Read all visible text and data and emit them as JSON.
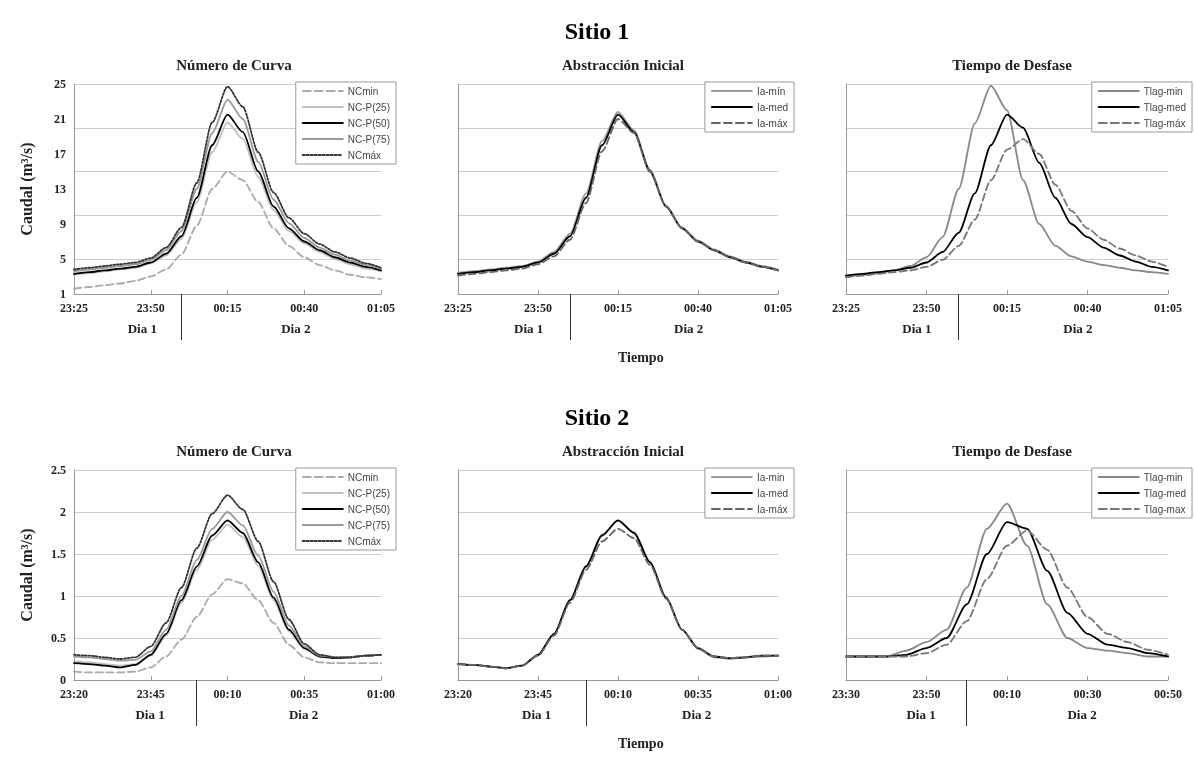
{
  "chart_data": [
    {
      "type": "line",
      "title": "Número de Curva",
      "ylabel": "Caudal (m³/s)",
      "annotations": [
        "Dia 1",
        "Dia 2"
      ],
      "marker": "none",
      "grid": "y",
      "legend": "top right",
      "x": [
        "--01-01T23:25",
        "--01-01T23:30",
        "--01-01T23:35",
        "--01-01T23:40",
        "--01-01T23:45",
        "--01-01T23:50",
        "--01-01T23:55",
        "--01-02T00:00",
        "--01-02T00:05",
        "--01-02T00:10",
        "--01-02T00:15",
        "--01-02T00:20",
        "--01-02T00:25",
        "--01-02T00:30",
        "--01-02T00:35",
        "--01-02T00:40",
        "--01-02T00:45",
        "--01-02T00:50",
        "--01-02T00:55",
        "--01-02T01:00",
        "--01-02T01:05"
      ],
      "xlim": [
        "--01-01T23:25",
        "--01-02T01:05"
      ],
      "xticks": [
        {
          "value": "--01-01T23:25",
          "label": "23:25"
        },
        {
          "value": "--01-01T23:50",
          "label": "23:50"
        },
        {
          "value": "--01-02T00:15",
          "label": "00:15"
        },
        {
          "value": "--01-02T00:40",
          "label": "00:40"
        },
        {
          "value": "--01-02T01:05",
          "label": "01:05"
        }
      ],
      "ylim": [
        1,
        25
      ],
      "yticks": [
        1,
        5,
        9,
        13,
        17,
        21,
        25
      ],
      "series": [
        {
          "name": "NCmin",
          "color": "#aaaaaa",
          "line_style": "dashed",
          "values": [
            1.6,
            1.8,
            2.0,
            2.2,
            2.5,
            3.0,
            3.8,
            5.5,
            8.8,
            13,
            15,
            14,
            11.5,
            8.5,
            6.5,
            5.2,
            4.3,
            3.7,
            3.2,
            2.9,
            2.7
          ]
        },
        {
          "name": "NC-P(25)",
          "color": "#c0c0c0",
          "line_style": "solid",
          "values": [
            3.2,
            3.4,
            3.6,
            3.8,
            4.0,
            4.5,
            5.4,
            7.3,
            11.5,
            17.2,
            20.6,
            18.7,
            14.4,
            10.6,
            8.2,
            6.8,
            5.8,
            5.0,
            4.4,
            3.9,
            3.6
          ]
        },
        {
          "name": "NC-P(50)",
          "color": "#000000",
          "line_style": "solid",
          "values": [
            3.3,
            3.5,
            3.7,
            3.9,
            4.1,
            4.6,
            5.6,
            7.6,
            12,
            18,
            21.5,
            19.5,
            15,
            11,
            8.5,
            7,
            6,
            5.2,
            4.6,
            4.1,
            3.7
          ]
        },
        {
          "name": "NC-P(75)",
          "color": "#999999",
          "line_style": "solid",
          "values": [
            3.6,
            3.8,
            4.0,
            4.2,
            4.4,
            4.9,
            6,
            8.2,
            13,
            19.4,
            23.2,
            21,
            16.1,
            11.8,
            9.1,
            7.4,
            6.3,
            5.5,
            4.8,
            4.3,
            3.9
          ]
        },
        {
          "name": "NCmáx",
          "color": "#333333",
          "line_style": "dotted",
          "values": [
            3.8,
            4.0,
            4.2,
            4.4,
            4.6,
            5.1,
            6.3,
            8.6,
            13.7,
            20.6,
            24.7,
            22.4,
            17.2,
            12.6,
            9.7,
            7.9,
            6.7,
            5.8,
            5.1,
            4.5,
            4.0
          ]
        }
      ]
    },
    {
      "type": "line",
      "title": "Sitio 1",
      "subtitle": "Abstracción Inicial",
      "xlabel": "Tiempo",
      "annotations": [
        "Dia 1",
        "Dia 2"
      ],
      "marker": "none",
      "grid": "y",
      "legend": "top right",
      "tick_labels": "x",
      "x": [
        "--01-01T23:25",
        "--01-01T23:30",
        "--01-01T23:35",
        "--01-01T23:40",
        "--01-01T23:45",
        "--01-01T23:50",
        "--01-01T23:55",
        "--01-02T00:00",
        "--01-02T00:05",
        "--01-02T00:10",
        "--01-02T00:15",
        "--01-02T00:20",
        "--01-02T00:25",
        "--01-02T00:30",
        "--01-02T00:35",
        "--01-02T00:40",
        "--01-02T00:45",
        "--01-02T00:50",
        "--01-02T00:55",
        "--01-02T01:00",
        "--01-02T01:05"
      ],
      "xlim": [
        "--01-01T23:25",
        "--01-02T01:05"
      ],
      "xticks": [
        {
          "value": "--01-01T23:25",
          "label": "23:25"
        },
        {
          "value": "--01-01T23:50",
          "label": "23:50"
        },
        {
          "value": "--01-02T00:15",
          "label": "00:15"
        },
        {
          "value": "--01-02T00:40",
          "label": "00:40"
        },
        {
          "value": "--01-02T01:05",
          "label": "01:05"
        }
      ],
      "ylim": [
        1,
        25
      ],
      "yticks": [
        1,
        5,
        9,
        13,
        17,
        21,
        25
      ],
      "series": [
        {
          "name": "Ia-mín",
          "color": "#999999",
          "line_style": "solid",
          "values": [
            3.4,
            3.6,
            3.8,
            4.0,
            4.2,
            4.7,
            5.8,
            7.9,
            12.5,
            18.5,
            21.8,
            19.7,
            15.2,
            11.1,
            8.6,
            7.1,
            6.1,
            5.3,
            4.7,
            4.2,
            3.8
          ]
        },
        {
          "name": "Ia-med",
          "color": "#000000",
          "line_style": "solid",
          "values": [
            3.3,
            3.5,
            3.7,
            3.9,
            4.1,
            4.6,
            5.6,
            7.6,
            12,
            18,
            21.5,
            19.5,
            15,
            11,
            8.5,
            7,
            6,
            5.2,
            4.6,
            4.1,
            3.7
          ]
        },
        {
          "name": "Ia-máx",
          "color": "#666666",
          "line_style": "dashed",
          "values": [
            3.1,
            3.3,
            3.5,
            3.7,
            3.9,
            4.4,
            5.3,
            7.2,
            11.4,
            17.3,
            21,
            19.4,
            15,
            11,
            8.5,
            7,
            6,
            5.2,
            4.6,
            4.1,
            3.7
          ]
        }
      ]
    },
    {
      "type": "line",
      "title": "Tiempo de Desfase",
      "annotations": [
        "Dia 1",
        "Dia 2"
      ],
      "marker": "none",
      "grid": "y",
      "legend": "top right",
      "tick_labels": "x",
      "x": [
        "--01-01T23:25",
        "--01-01T23:30",
        "--01-01T23:35",
        "--01-01T23:40",
        "--01-01T23:45",
        "--01-01T23:50",
        "--01-01T23:55",
        "--01-02T00:00",
        "--01-02T00:05",
        "--01-02T00:10",
        "--01-02T00:15",
        "--01-02T00:20",
        "--01-02T00:25",
        "--01-02T00:30",
        "--01-02T00:35",
        "--01-02T00:40",
        "--01-02T00:45",
        "--01-02T00:50",
        "--01-02T00:55",
        "--01-02T01:00",
        "--01-02T01:05"
      ],
      "xlim": [
        "--01-01T23:25",
        "--01-02T01:05"
      ],
      "xticks": [
        {
          "value": "--01-01T23:25",
          "label": "23:25"
        },
        {
          "value": "--01-01T23:50",
          "label": "23:50"
        },
        {
          "value": "--01-02T00:15",
          "label": "00:15"
        },
        {
          "value": "--01-02T00:40",
          "label": "00:40"
        },
        {
          "value": "--01-02T01:05",
          "label": "01:05"
        }
      ],
      "ylim": [
        1,
        25
      ],
      "yticks": [
        1,
        5,
        9,
        13,
        17,
        21,
        25
      ],
      "series": [
        {
          "name": "Tlag-min",
          "color": "#888888",
          "line_style": "solid",
          "values": [
            3.0,
            3.2,
            3.4,
            3.7,
            4.2,
            5.2,
            7.5,
            13,
            20.5,
            24.8,
            22,
            14,
            9,
            6.5,
            5.3,
            4.7,
            4.3,
            4.0,
            3.7,
            3.5,
            3.3
          ]
        },
        {
          "name": "Tlag-med",
          "color": "#000000",
          "line_style": "solid",
          "values": [
            3.1,
            3.3,
            3.5,
            3.7,
            4.0,
            4.6,
            5.8,
            8,
            12.5,
            18,
            21.5,
            20,
            16,
            12,
            9,
            7.5,
            6.3,
            5.4,
            4.7,
            4.1,
            3.7
          ]
        },
        {
          "name": "Tlag-máx",
          "color": "#777777",
          "line_style": "dashed",
          "values": [
            2.9,
            3.1,
            3.3,
            3.5,
            3.7,
            4.1,
            4.9,
            6.5,
            9.5,
            14,
            17.5,
            18.7,
            17,
            13.5,
            10.5,
            8.5,
            7.2,
            6.2,
            5.4,
            4.7,
            4.1
          ]
        }
      ]
    },
    {
      "type": "line",
      "title": "Número de Curva",
      "ylabel": "Caudal (m³/s)",
      "annotations": [
        "Dia 1",
        "Dia 2"
      ],
      "marker": "none",
      "grid": "y",
      "legend": "top right",
      "x": [
        "--01-01T23:20",
        "--01-01T23:25",
        "--01-01T23:30",
        "--01-01T23:35",
        "--01-01T23:40",
        "--01-01T23:45",
        "--01-01T23:50",
        "--01-01T23:55",
        "--01-02T00:00",
        "--01-02T00:05",
        "--01-02T00:10",
        "--01-02T00:15",
        "--01-02T00:20",
        "--01-02T00:25",
        "--01-02T00:30",
        "--01-02T00:35",
        "--01-02T00:40",
        "--01-02T00:45",
        "--01-02T00:50",
        "--01-02T00:55",
        "--01-02T01:00"
      ],
      "xlim": [
        "--01-01T23:20",
        "--01-02T01:00"
      ],
      "xticks": [
        {
          "value": "--01-01T23:20",
          "label": "23:20"
        },
        {
          "value": "--01-01T23:45",
          "label": "23:45"
        },
        {
          "value": "--01-02T00:10",
          "label": "00:10"
        },
        {
          "value": "--01-02T00:35",
          "label": "00:35"
        },
        {
          "value": "--01-02T01:00",
          "label": "01:00"
        }
      ],
      "ylim": [
        0,
        2.5
      ],
      "yticks": [
        0,
        0.5,
        1,
        1.5,
        2,
        2.5
      ],
      "series": [
        {
          "name": "NCmin",
          "color": "#aaaaaa",
          "line_style": "dashed",
          "values": [
            0.1,
            0.09,
            0.09,
            0.09,
            0.1,
            0.15,
            0.28,
            0.48,
            0.75,
            1.02,
            1.2,
            1.15,
            0.95,
            0.68,
            0.42,
            0.27,
            0.21,
            0.2,
            0.2,
            0.2,
            0.2
          ]
        },
        {
          "name": "NC-P(25)",
          "color": "#c0c0c0",
          "line_style": "solid",
          "values": [
            0.22,
            0.21,
            0.19,
            0.17,
            0.19,
            0.29,
            0.53,
            0.92,
            1.31,
            1.67,
            1.85,
            1.7,
            1.36,
            0.95,
            0.58,
            0.37,
            0.28,
            0.26,
            0.27,
            0.29,
            0.3
          ]
        },
        {
          "name": "NC-P(50)",
          "color": "#000000",
          "line_style": "solid",
          "values": [
            0.2,
            0.19,
            0.17,
            0.15,
            0.18,
            0.3,
            0.55,
            0.95,
            1.35,
            1.72,
            1.9,
            1.75,
            1.4,
            0.98,
            0.6,
            0.38,
            0.28,
            0.26,
            0.27,
            0.29,
            0.3
          ]
        },
        {
          "name": "NC-P(75)",
          "color": "#999999",
          "line_style": "solid",
          "values": [
            0.28,
            0.27,
            0.25,
            0.23,
            0.24,
            0.34,
            0.6,
            1.0,
            1.43,
            1.8,
            2.0,
            1.84,
            1.48,
            1.05,
            0.65,
            0.4,
            0.29,
            0.27,
            0.27,
            0.29,
            0.3
          ]
        },
        {
          "name": "NCmáx",
          "color": "#333333",
          "line_style": "dotted",
          "values": [
            0.3,
            0.29,
            0.27,
            0.25,
            0.27,
            0.4,
            0.68,
            1.1,
            1.57,
            1.98,
            2.2,
            2.03,
            1.65,
            1.17,
            0.72,
            0.43,
            0.3,
            0.27,
            0.27,
            0.29,
            0.3
          ]
        }
      ]
    },
    {
      "type": "line",
      "title": "Sitio 2",
      "subtitle": "Abstracción Inicial",
      "xlabel": "Tiempo",
      "annotations": [
        "Dia 1",
        "Dia 2"
      ],
      "marker": "none",
      "grid": "y",
      "legend": "top right",
      "tick_labels": "x",
      "x": [
        "--01-01T23:20",
        "--01-01T23:25",
        "--01-01T23:30",
        "--01-01T23:35",
        "--01-01T23:40",
        "--01-01T23:45",
        "--01-01T23:50",
        "--01-01T23:55",
        "--01-02T00:00",
        "--01-02T00:05",
        "--01-02T00:10",
        "--01-02T00:15",
        "--01-02T00:20",
        "--01-02T00:25",
        "--01-02T00:30",
        "--01-02T00:35",
        "--01-02T00:40",
        "--01-02T00:45",
        "--01-02T00:50",
        "--01-02T00:55",
        "--01-02T01:00"
      ],
      "xlim": [
        "--01-01T23:20",
        "--01-02T01:00"
      ],
      "xticks": [
        {
          "value": "--01-01T23:20",
          "label": "23:20"
        },
        {
          "value": "--01-01T23:45",
          "label": "23:45"
        },
        {
          "value": "--01-02T00:10",
          "label": "00:10"
        },
        {
          "value": "--01-02T00:35",
          "label": "00:35"
        },
        {
          "value": "--01-02T01:00",
          "label": "01:00"
        }
      ],
      "ylim": [
        0,
        2.5
      ],
      "yticks": [
        0,
        0.5,
        1,
        1.5,
        2,
        2.5
      ],
      "series": [
        {
          "name": "Ia-min",
          "color": "#999999",
          "line_style": "solid",
          "values": [
            0.19,
            0.18,
            0.16,
            0.14,
            0.17,
            0.29,
            0.55,
            0.95,
            1.36,
            1.73,
            1.9,
            1.76,
            1.41,
            0.99,
            0.6,
            0.37,
            0.27,
            0.25,
            0.27,
            0.28,
            0.29
          ]
        },
        {
          "name": "Ia-med",
          "color": "#000000",
          "line_style": "solid",
          "values": [
            0.19,
            0.18,
            0.16,
            0.14,
            0.17,
            0.3,
            0.55,
            0.95,
            1.35,
            1.72,
            1.9,
            1.75,
            1.4,
            0.98,
            0.6,
            0.38,
            0.28,
            0.26,
            0.27,
            0.29,
            0.29
          ]
        },
        {
          "name": "Ia-máx",
          "color": "#666666",
          "line_style": "dashed",
          "values": [
            0.19,
            0.18,
            0.16,
            0.14,
            0.17,
            0.29,
            0.53,
            0.92,
            1.31,
            1.65,
            1.8,
            1.69,
            1.37,
            0.97,
            0.6,
            0.38,
            0.28,
            0.26,
            0.27,
            0.29,
            0.29
          ]
        }
      ]
    },
    {
      "type": "line",
      "title": "Tiempo de Desfase",
      "annotations": [
        "Dia 1",
        "Dia 2"
      ],
      "marker": "none",
      "grid": "y",
      "legend": "top right",
      "tick_labels": "x",
      "x": [
        "--01-01T23:30",
        "--01-01T23:35",
        "--01-01T23:40",
        "--01-01T23:45",
        "--01-01T23:50",
        "--01-01T23:55",
        "--01-02T00:00",
        "--01-02T00:05",
        "--01-02T00:10",
        "--01-02T00:15",
        "--01-02T00:20",
        "--01-02T00:25",
        "--01-02T00:30",
        "--01-02T00:35",
        "--01-02T00:40",
        "--01-02T00:45",
        "--01-02T00:50"
      ],
      "xlim": [
        "--01-01T23:30",
        "--01-02T00:50"
      ],
      "xticks": [
        {
          "value": "--01-01T23:30",
          "label": "23:30"
        },
        {
          "value": "--01-01T23:50",
          "label": "23:50"
        },
        {
          "value": "--01-02T00:10",
          "label": "00:10"
        },
        {
          "value": "--01-02T00:30",
          "label": "00:30"
        },
        {
          "value": "--01-02T00:50",
          "label": "00:50"
        }
      ],
      "ylim": [
        0,
        2.5
      ],
      "yticks": [
        0,
        0.5,
        1,
        1.5,
        2,
        2.5
      ],
      "series": [
        {
          "name": "Tlag-min",
          "color": "#888888",
          "line_style": "solid",
          "values": [
            0.28,
            0.28,
            0.28,
            0.35,
            0.45,
            0.6,
            1.1,
            1.8,
            2.1,
            1.6,
            0.9,
            0.5,
            0.38,
            0.35,
            0.32,
            0.28,
            0.28
          ]
        },
        {
          "name": "Tlag-med",
          "color": "#000000",
          "line_style": "solid",
          "values": [
            0.28,
            0.28,
            0.28,
            0.3,
            0.38,
            0.5,
            0.9,
            1.5,
            1.88,
            1.8,
            1.3,
            0.8,
            0.55,
            0.42,
            0.38,
            0.32,
            0.28
          ]
        },
        {
          "name": "Tlag-max",
          "color": "#777777",
          "line_style": "dashed",
          "values": [
            0.28,
            0.28,
            0.28,
            0.28,
            0.32,
            0.42,
            0.7,
            1.2,
            1.6,
            1.78,
            1.55,
            1.1,
            0.75,
            0.55,
            0.45,
            0.36,
            0.3
          ]
        }
      ]
    }
  ]
}
